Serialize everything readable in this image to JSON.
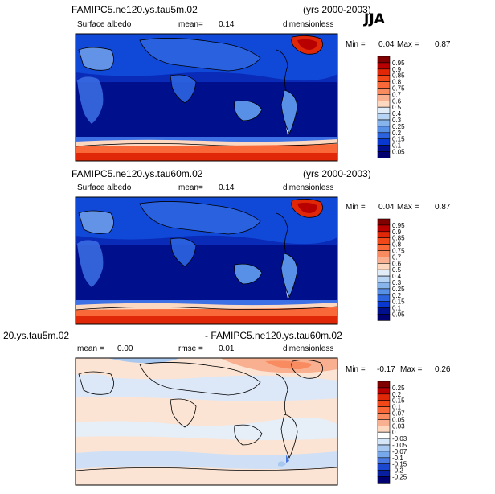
{
  "season": "JJA",
  "panels": [
    {
      "title_left": "FAMIPC5.ne120.ys.tau5m.02",
      "title_right": "(yrs 2000-2003)",
      "sub_left": "Surface albedo",
      "sub_mid_label": "mean=",
      "sub_mid_value": "0.14",
      "sub_right": "dimensionless",
      "min_label": "Min =",
      "min_value": "0.04",
      "max_label": "Max =",
      "max_value": "0.87"
    },
    {
      "title_left": "FAMIPC5.ne120.ys.tau60m.02",
      "title_right": "(yrs 2000-2003)",
      "sub_left": "Surface albedo",
      "sub_mid_label": "mean=",
      "sub_mid_value": "0.14",
      "sub_right": "dimensionless",
      "min_label": "Min =",
      "min_value": "0.04",
      "max_label": "Max =",
      "max_value": "0.87"
    },
    {
      "title_left": "20.ys.tau5m.02",
      "title_right": "- FAMIPC5.ne120.ys.tau60m.02",
      "sub_left_label": "mean =",
      "sub_left_value": "0.00",
      "sub_mid_label": "rmse =",
      "sub_mid_value": "0.01",
      "sub_right": "dimensionless",
      "min_label": "Min =",
      "min_value": "-0.17",
      "max_label": "Max =",
      "max_value": "0.26"
    }
  ],
  "chart_data": [
    {
      "type": "heatmap",
      "title": "FAMIPC5.ne120.ys.tau5m.02",
      "variable": "Surface albedo",
      "units": "dimensionless",
      "mean": 0.14,
      "min": 0.04,
      "max": 0.87,
      "colorbar_levels": [
        "0.95",
        "0.9",
        "0.85",
        "0.8",
        "0.75",
        "0.7",
        "0.6",
        "0.5",
        "0.4",
        "0.3",
        "0.25",
        "0.2",
        "0.15",
        "0.1",
        "0.05"
      ],
      "colorbar_colors": [
        "#800000",
        "#b80000",
        "#e02808",
        "#f04818",
        "#f86838",
        "#f88c60",
        "#f8b090",
        "#fcd8c0",
        "#e0ecf8",
        "#b8d4f4",
        "#88b4ec",
        "#5890e8",
        "#2c64e0",
        "#0838d0",
        "#00108c",
        "#000070"
      ]
    },
    {
      "type": "heatmap",
      "title": "FAMIPC5.ne120.ys.tau60m.02",
      "variable": "Surface albedo",
      "units": "dimensionless",
      "mean": 0.14,
      "min": 0.04,
      "max": 0.87,
      "colorbar_levels": [
        "0.95",
        "0.9",
        "0.85",
        "0.8",
        "0.75",
        "0.7",
        "0.6",
        "0.5",
        "0.4",
        "0.3",
        "0.25",
        "0.2",
        "0.15",
        "0.1",
        "0.05"
      ],
      "colorbar_colors": [
        "#800000",
        "#b80000",
        "#e02808",
        "#f04818",
        "#f86838",
        "#f88c60",
        "#f8b090",
        "#fcd8c0",
        "#e0ecf8",
        "#b8d4f4",
        "#88b4ec",
        "#5890e8",
        "#2c64e0",
        "#0838d0",
        "#00108c",
        "#000070"
      ]
    },
    {
      "type": "heatmap",
      "title": "20.ys.tau5m.02 - FAMIPC5.ne120.ys.tau60m.02",
      "units": "dimensionless",
      "mean": 0.0,
      "rmse": 0.01,
      "min": -0.17,
      "max": 0.26,
      "colorbar_levels": [
        "0.25",
        "0.2",
        "0.15",
        "0.1",
        "0.07",
        "0.05",
        "0.03",
        "0",
        "-0.03",
        "-0.05",
        "-0.07",
        "-0.1",
        "-0.15",
        "-0.2",
        "-0.25"
      ],
      "colorbar_colors": [
        "#800000",
        "#b80000",
        "#e02808",
        "#f04818",
        "#f86838",
        "#f88c60",
        "#f8b090",
        "#fcd8c0",
        "#ffffff",
        "#d4e6f8",
        "#a8c8f0",
        "#78a8ec",
        "#4878e0",
        "#1c48d0",
        "#0820a0",
        "#000070"
      ]
    }
  ]
}
